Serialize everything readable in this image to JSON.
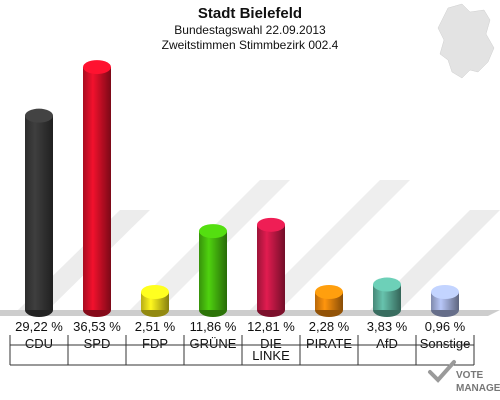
{
  "chart_data": {
    "type": "bar",
    "title": "Stadt Bielefeld",
    "subtitle_1": "Bundestagswahl 22.09.2013",
    "subtitle_2": "Zweitstimmen Stimmbezirk 002.4",
    "xlabel": "",
    "ylabel": "",
    "ylim": [
      0,
      40
    ],
    "grid": false,
    "categories": [
      "CDU",
      "SPD",
      "FDP",
      "GRÜNE",
      "DIE LINKE",
      "PIRATE",
      "AfD",
      "Sonstige"
    ],
    "values": [
      29.22,
      36.53,
      2.51,
      11.86,
      12.81,
      2.28,
      3.83,
      0.96
    ],
    "value_labels": [
      "29,22 %",
      "36,53 %",
      "2,51 %",
      "11,86 %",
      "12,81 %",
      "2,28 %",
      "3,83 %",
      "0,96 %"
    ],
    "colors": [
      "#3a3a3a",
      "#e0102a",
      "#f5e61c",
      "#49c20e",
      "#d01a4a",
      "#f58a0c",
      "#5fb5a0",
      "#aab8e6"
    ]
  },
  "logo": {
    "line1": "VOTE",
    "line2": "MANAGER"
  }
}
